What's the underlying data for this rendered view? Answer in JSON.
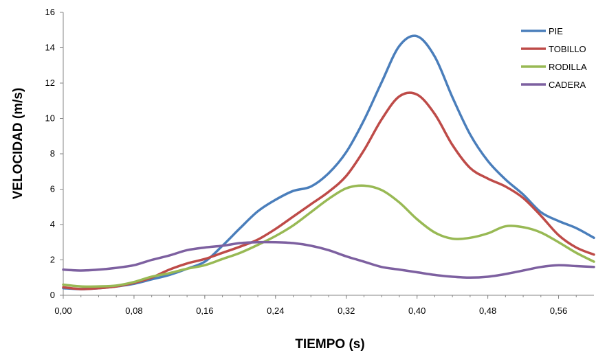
{
  "chart_data": {
    "type": "line",
    "xlabel": "TIEMPO (s)",
    "ylabel": "VELOCIDAD (m/s)",
    "xlim": [
      0,
      0.6
    ],
    "ylim": [
      0,
      16
    ],
    "y_ticks": [
      0,
      2,
      4,
      6,
      8,
      10,
      12,
      14,
      16
    ],
    "x_tick_values": [
      0,
      0.08,
      0.16,
      0.24,
      0.32,
      0.4,
      0.48,
      0.56
    ],
    "x_tick_labels": [
      "0,00",
      "0,08",
      "0,16",
      "0,24",
      "0,32",
      "0,40",
      "0,48",
      "0,56"
    ],
    "grid": false,
    "legend_position": "right",
    "x": [
      0.0,
      0.02,
      0.04,
      0.06,
      0.08,
      0.1,
      0.12,
      0.14,
      0.16,
      0.18,
      0.2,
      0.22,
      0.24,
      0.26,
      0.28,
      0.3,
      0.32,
      0.34,
      0.36,
      0.38,
      0.4,
      0.42,
      0.44,
      0.46,
      0.48,
      0.5,
      0.52,
      0.54,
      0.56,
      0.58,
      0.6
    ],
    "series": [
      {
        "name": "PIE",
        "color": "#4a7ebb",
        "values": [
          0.4,
          0.35,
          0.4,
          0.5,
          0.65,
          0.9,
          1.15,
          1.5,
          1.9,
          2.8,
          3.8,
          4.75,
          5.4,
          5.9,
          6.15,
          6.9,
          8.1,
          9.9,
          12.05,
          14.1,
          14.65,
          13.5,
          11.2,
          9.1,
          7.6,
          6.55,
          5.7,
          4.7,
          4.2,
          3.8,
          3.25
        ]
      },
      {
        "name": "TOBILLO",
        "color": "#be4b48",
        "values": [
          0.45,
          0.35,
          0.4,
          0.5,
          0.7,
          1.0,
          1.45,
          1.8,
          2.05,
          2.4,
          2.75,
          3.15,
          3.75,
          4.45,
          5.15,
          5.85,
          6.75,
          8.2,
          9.95,
          11.25,
          11.35,
          10.25,
          8.5,
          7.2,
          6.6,
          6.15,
          5.5,
          4.5,
          3.4,
          2.7,
          2.3
        ]
      },
      {
        "name": "RODILLA",
        "color": "#98b954",
        "values": [
          0.6,
          0.5,
          0.5,
          0.55,
          0.75,
          1.05,
          1.25,
          1.5,
          1.7,
          2.05,
          2.4,
          2.85,
          3.35,
          3.95,
          4.7,
          5.45,
          6.05,
          6.2,
          5.95,
          5.25,
          4.3,
          3.55,
          3.2,
          3.25,
          3.5,
          3.9,
          3.85,
          3.55,
          3.0,
          2.4,
          1.9
        ]
      },
      {
        "name": "CADERA",
        "color": "#7d60a0",
        "values": [
          1.45,
          1.4,
          1.45,
          1.55,
          1.7,
          2.0,
          2.25,
          2.55,
          2.7,
          2.8,
          2.95,
          3.0,
          3.0,
          2.95,
          2.8,
          2.55,
          2.2,
          1.9,
          1.6,
          1.45,
          1.3,
          1.15,
          1.05,
          1.0,
          1.05,
          1.2,
          1.4,
          1.6,
          1.7,
          1.65,
          1.6
        ]
      }
    ]
  }
}
